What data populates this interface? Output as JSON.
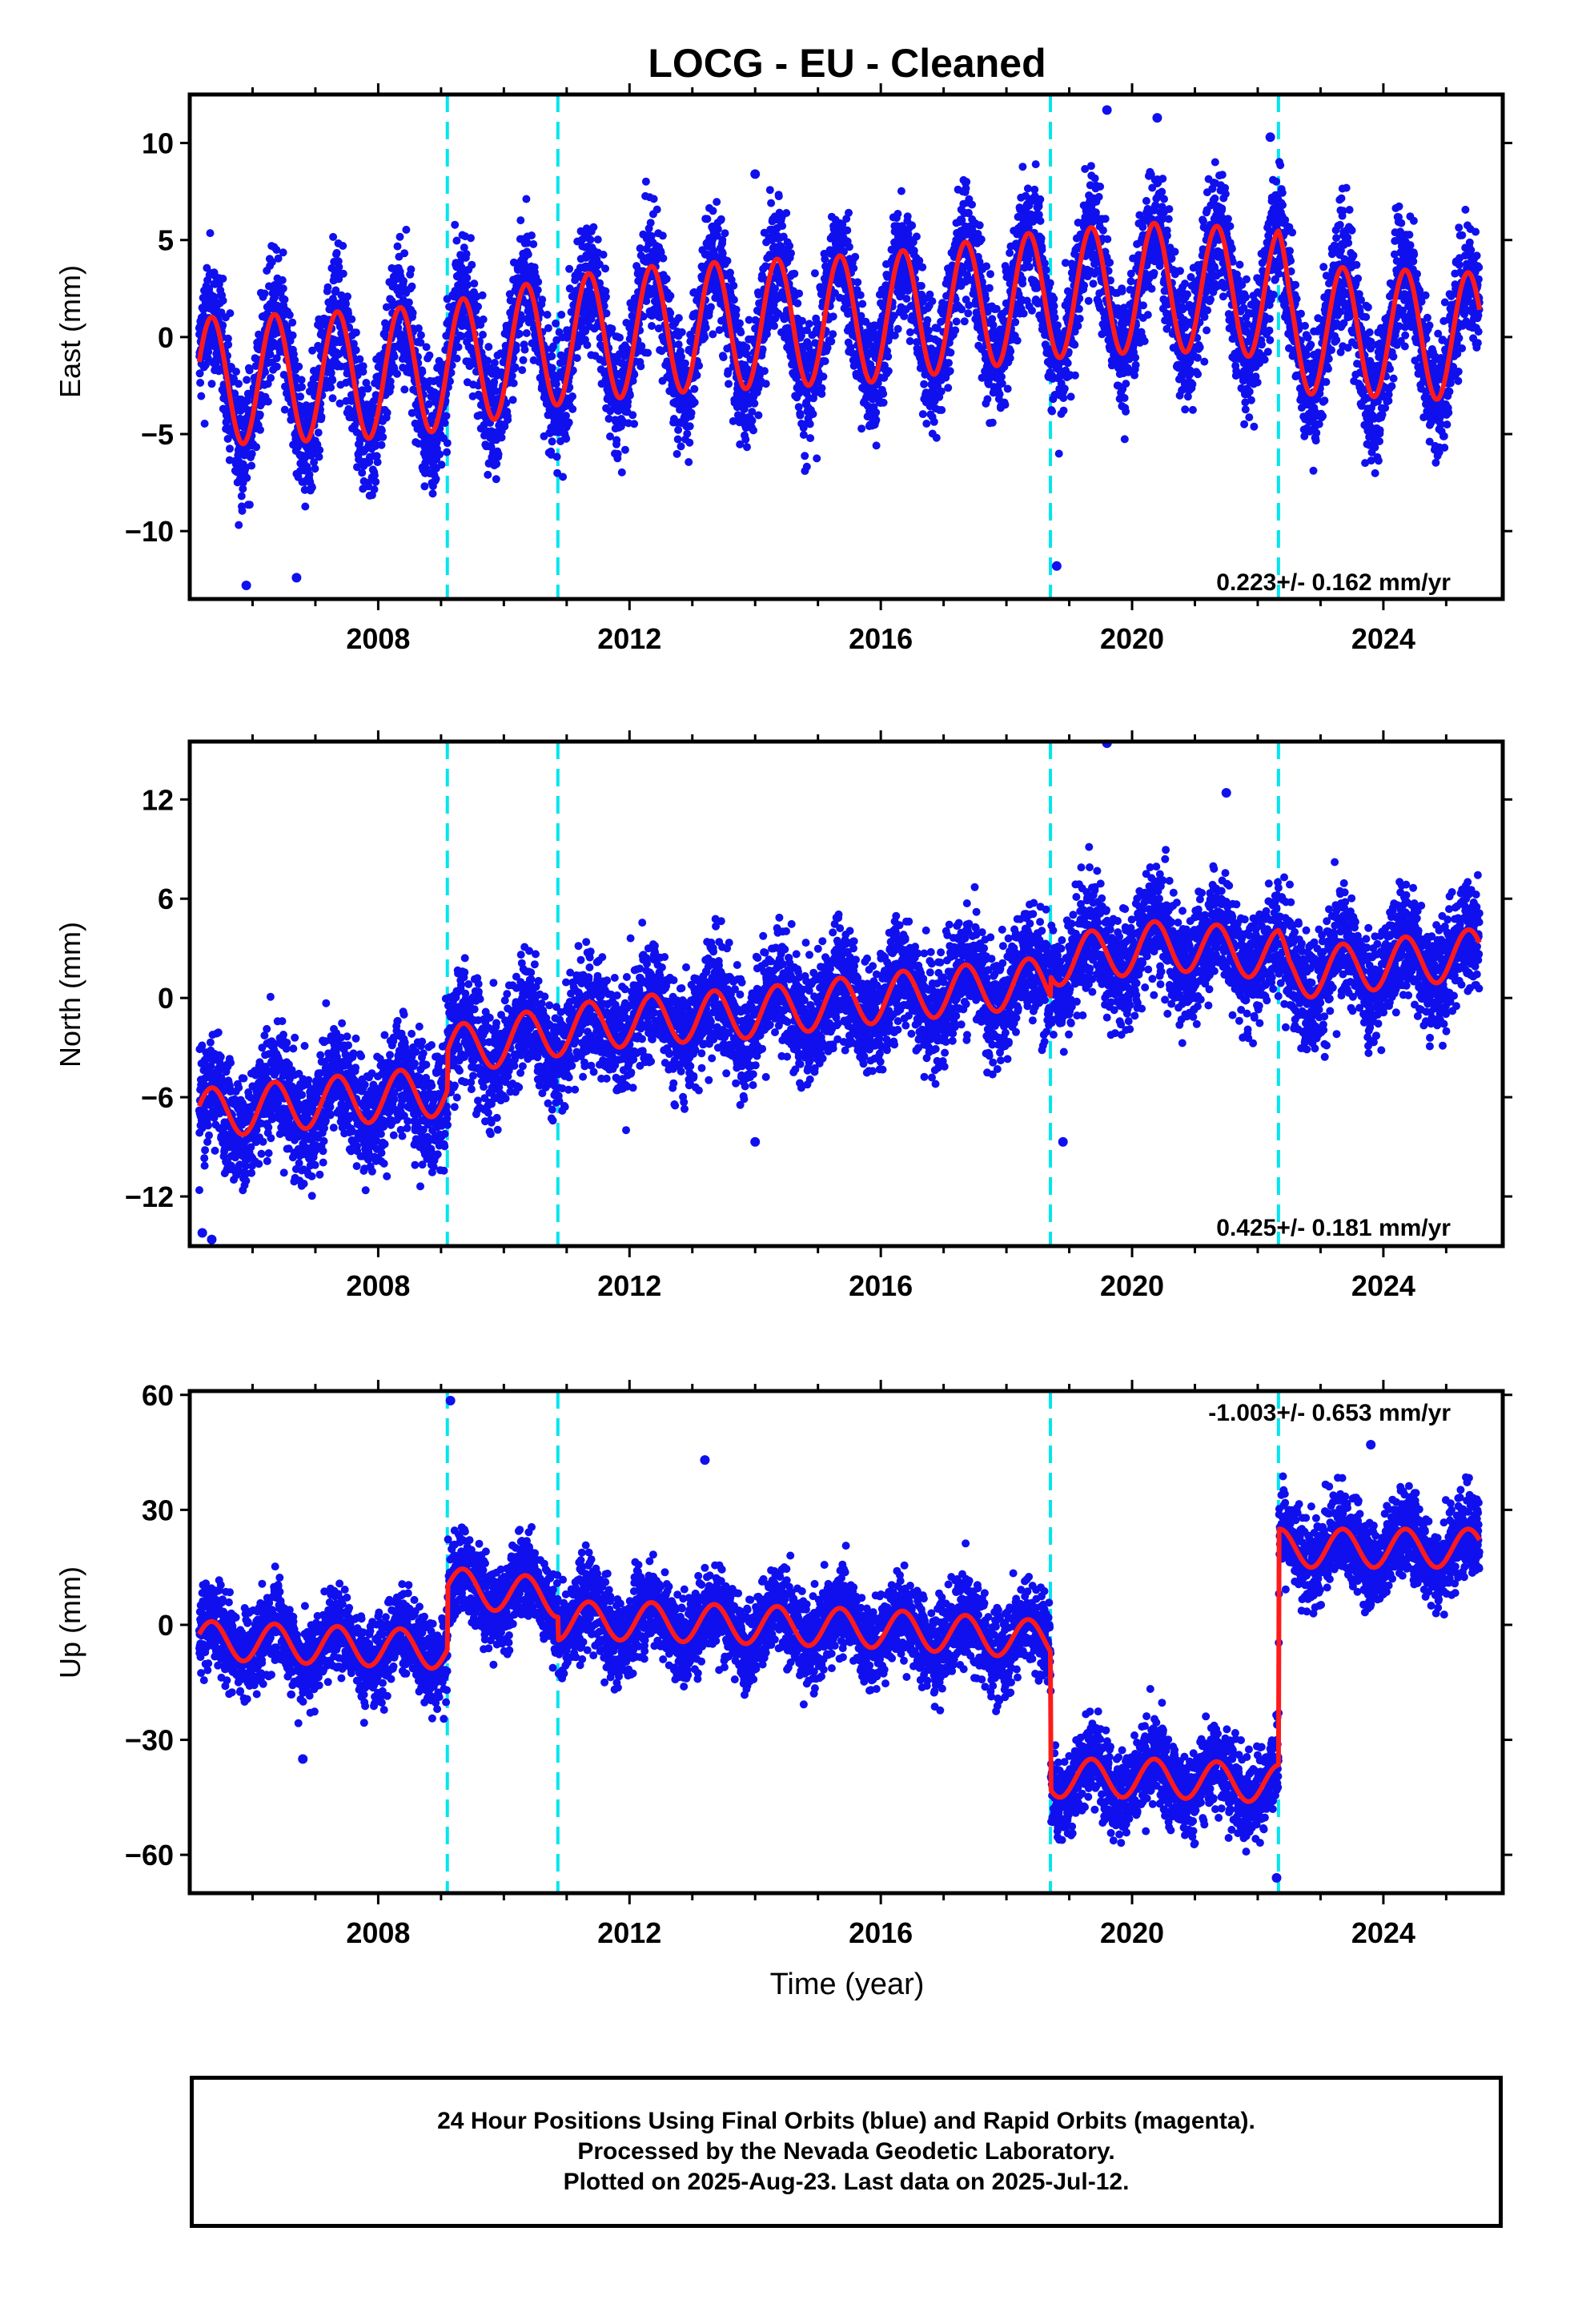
{
  "chart_data": {
    "type": "scatter",
    "title": "LOCG  - EU - Cleaned",
    "xlabel": "Time (year)",
    "xlim": [
      2005.0,
      2025.9
    ],
    "xticks": [
      "2008",
      "2012",
      "2016",
      "2020",
      "2024"
    ],
    "steps": [
      2009.1,
      2010.86,
      2018.7,
      2022.33
    ],
    "data_start": 2005.15,
    "data_end": 2025.53,
    "colors": {
      "points": "#1010ee",
      "model": "#ff1a1a",
      "steps": "#00e5ee",
      "frame": "#000000"
    },
    "panels": [
      {
        "name": "east",
        "ylabel": "East (mm)",
        "ylim": [
          -13.5,
          12.5
        ],
        "yticks": [
          "−10",
          "−5",
          "0",
          "5",
          "10"
        ],
        "rate_label": "0.223+/- 0.162 mm/yr",
        "rate_position": "bottom-right",
        "model_knots": [
          [
            2005.15,
            -2.3
          ],
          [
            2008.0,
            -1.9
          ],
          [
            2009.1,
            -1.5
          ],
          [
            2010.86,
            -0.2
          ],
          [
            2012.5,
            0.4
          ],
          [
            2016.0,
            1.0
          ],
          [
            2018.7,
            2.2
          ],
          [
            2020.5,
            2.6
          ],
          [
            2022.33,
            2.2
          ],
          [
            2022.5,
            0.4
          ],
          [
            2025.53,
            0.0
          ]
        ],
        "annual_amplitude": 3.3,
        "scatter_sd": 1.6,
        "outliers": [
          [
            2005.9,
            -12.8
          ],
          [
            2006.7,
            -12.4
          ],
          [
            2018.8,
            -11.8
          ],
          [
            2019.6,
            11.7
          ],
          [
            2020.4,
            11.3
          ],
          [
            2022.2,
            10.3
          ],
          [
            2014.0,
            8.4
          ]
        ]
      },
      {
        "name": "north",
        "ylabel": "North (mm)",
        "ylim": [
          -15.0,
          15.5
        ],
        "yticks": [
          "−12",
          "−6",
          "0",
          "6",
          "12"
        ],
        "rate_label": "0.425+/- 0.181 mm/yr",
        "rate_position": "bottom-right",
        "model_knots": [
          [
            2005.15,
            -7.0
          ],
          [
            2009.1,
            -5.6
          ],
          [
            2009.11,
            -3.2
          ],
          [
            2010.86,
            -2.0
          ],
          [
            2012.0,
            -1.4
          ],
          [
            2014.0,
            -0.9
          ],
          [
            2016.0,
            0.0
          ],
          [
            2018.7,
            1.0
          ],
          [
            2018.71,
            2.2
          ],
          [
            2020.5,
            3.2
          ],
          [
            2022.33,
            2.6
          ],
          [
            2022.5,
            1.4
          ],
          [
            2025.53,
            2.7
          ]
        ],
        "annual_amplitude": 1.5,
        "scatter_sd": 1.7,
        "outliers": [
          [
            2005.2,
            -14.2
          ],
          [
            2005.35,
            -14.6
          ],
          [
            2019.6,
            15.4
          ],
          [
            2021.5,
            12.4
          ],
          [
            2018.9,
            -8.7
          ],
          [
            2014.0,
            -8.7
          ]
        ]
      },
      {
        "name": "up",
        "ylabel": "Up (mm)",
        "ylim": [
          -70.0,
          61.0
        ],
        "yticks": [
          "−60",
          "−30",
          "0",
          "30",
          "60"
        ],
        "rate_label": "-1.003+/- 0.653 mm/yr",
        "rate_position": "top-right",
        "model_knots": [
          [
            2005.15,
            -4.0
          ],
          [
            2009.1,
            -6.5
          ],
          [
            2009.11,
            10.0
          ],
          [
            2010.86,
            7.0
          ],
          [
            2010.87,
            1.0
          ],
          [
            2012.0,
            1.0
          ],
          [
            2014.0,
            0.0
          ],
          [
            2016.0,
            -1.0
          ],
          [
            2018.7,
            -4.0
          ],
          [
            2018.71,
            -40.0
          ],
          [
            2020.5,
            -40.0
          ],
          [
            2022.33,
            -41.5
          ],
          [
            2022.34,
            20.0
          ],
          [
            2025.53,
            20.0
          ]
        ],
        "annual_amplitude": 5.0,
        "scatter_sd": 5.5,
        "outliers": [
          [
            2009.15,
            58.5
          ],
          [
            2013.2,
            43.0
          ],
          [
            2023.8,
            47.0
          ],
          [
            2006.8,
            -35.0
          ],
          [
            2022.3,
            -66.0
          ]
        ]
      }
    ]
  },
  "footer": {
    "line1": "24 Hour Positions Using Final Orbits (blue) and Rapid Orbits (magenta).",
    "line2": "Processed by the Nevada Geodetic Laboratory.",
    "line3": "Plotted on 2025-Aug-23. Last data on 2025-Jul-12."
  }
}
